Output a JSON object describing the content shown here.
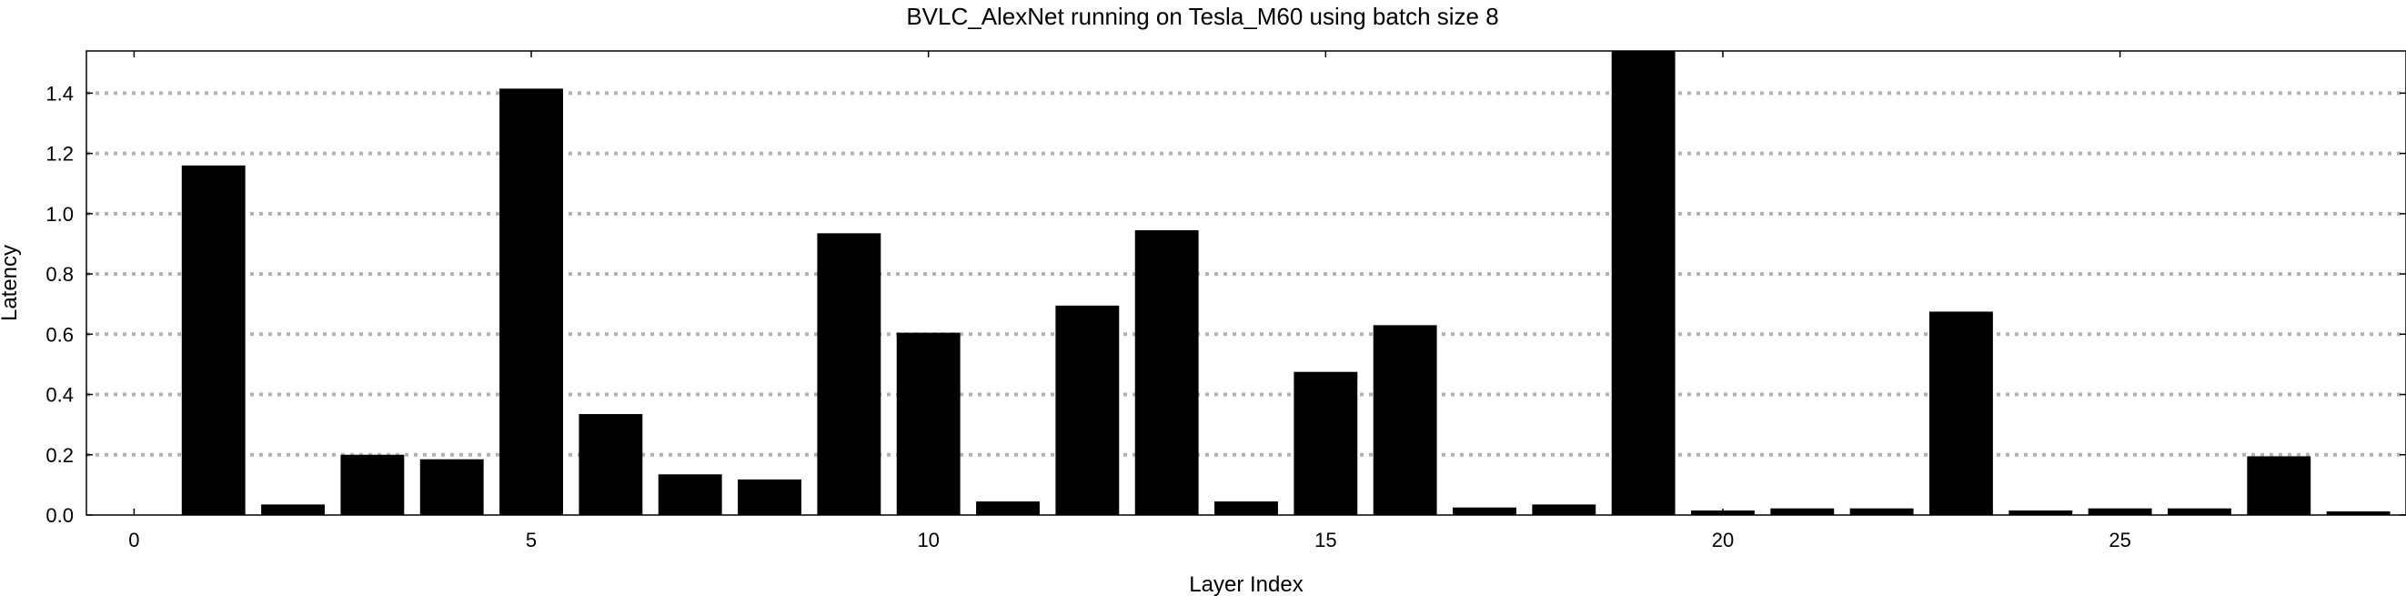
{
  "chart_data": {
    "type": "bar",
    "title": "BVLC_AlexNet running on Tesla_M60 using batch size 8",
    "xlabel": "Layer Index",
    "ylabel": "Latency",
    "xlim": [
      -0.6,
      28.6
    ],
    "ylim": [
      0,
      1.54
    ],
    "xticks": [
      0,
      5,
      10,
      15,
      20,
      25
    ],
    "yticks": [
      0.0,
      0.2,
      0.4,
      0.6,
      0.8,
      1.0,
      1.2,
      1.4
    ],
    "ytick_labels": [
      "0.0",
      "0.2",
      "0.4",
      "0.6",
      "0.8",
      "1.0",
      "1.2",
      "1.4"
    ],
    "grid": "horizontal-dotted",
    "bar_color": "#000000",
    "grid_color": "#b3b3b3",
    "x": [
      0,
      1,
      2,
      3,
      4,
      5,
      6,
      7,
      8,
      9,
      10,
      11,
      12,
      13,
      14,
      15,
      16,
      17,
      18,
      19,
      20,
      21,
      22,
      23,
      24,
      25,
      26,
      27,
      28
    ],
    "values": [
      0.0,
      1.16,
      0.035,
      0.2,
      0.185,
      1.415,
      0.335,
      0.135,
      0.118,
      0.935,
      0.605,
      0.045,
      0.695,
      0.945,
      0.045,
      0.475,
      0.63,
      0.025,
      0.035,
      1.54,
      0.015,
      0.022,
      0.022,
      0.675,
      0.015,
      0.022,
      0.022,
      0.195,
      0.012
    ]
  }
}
